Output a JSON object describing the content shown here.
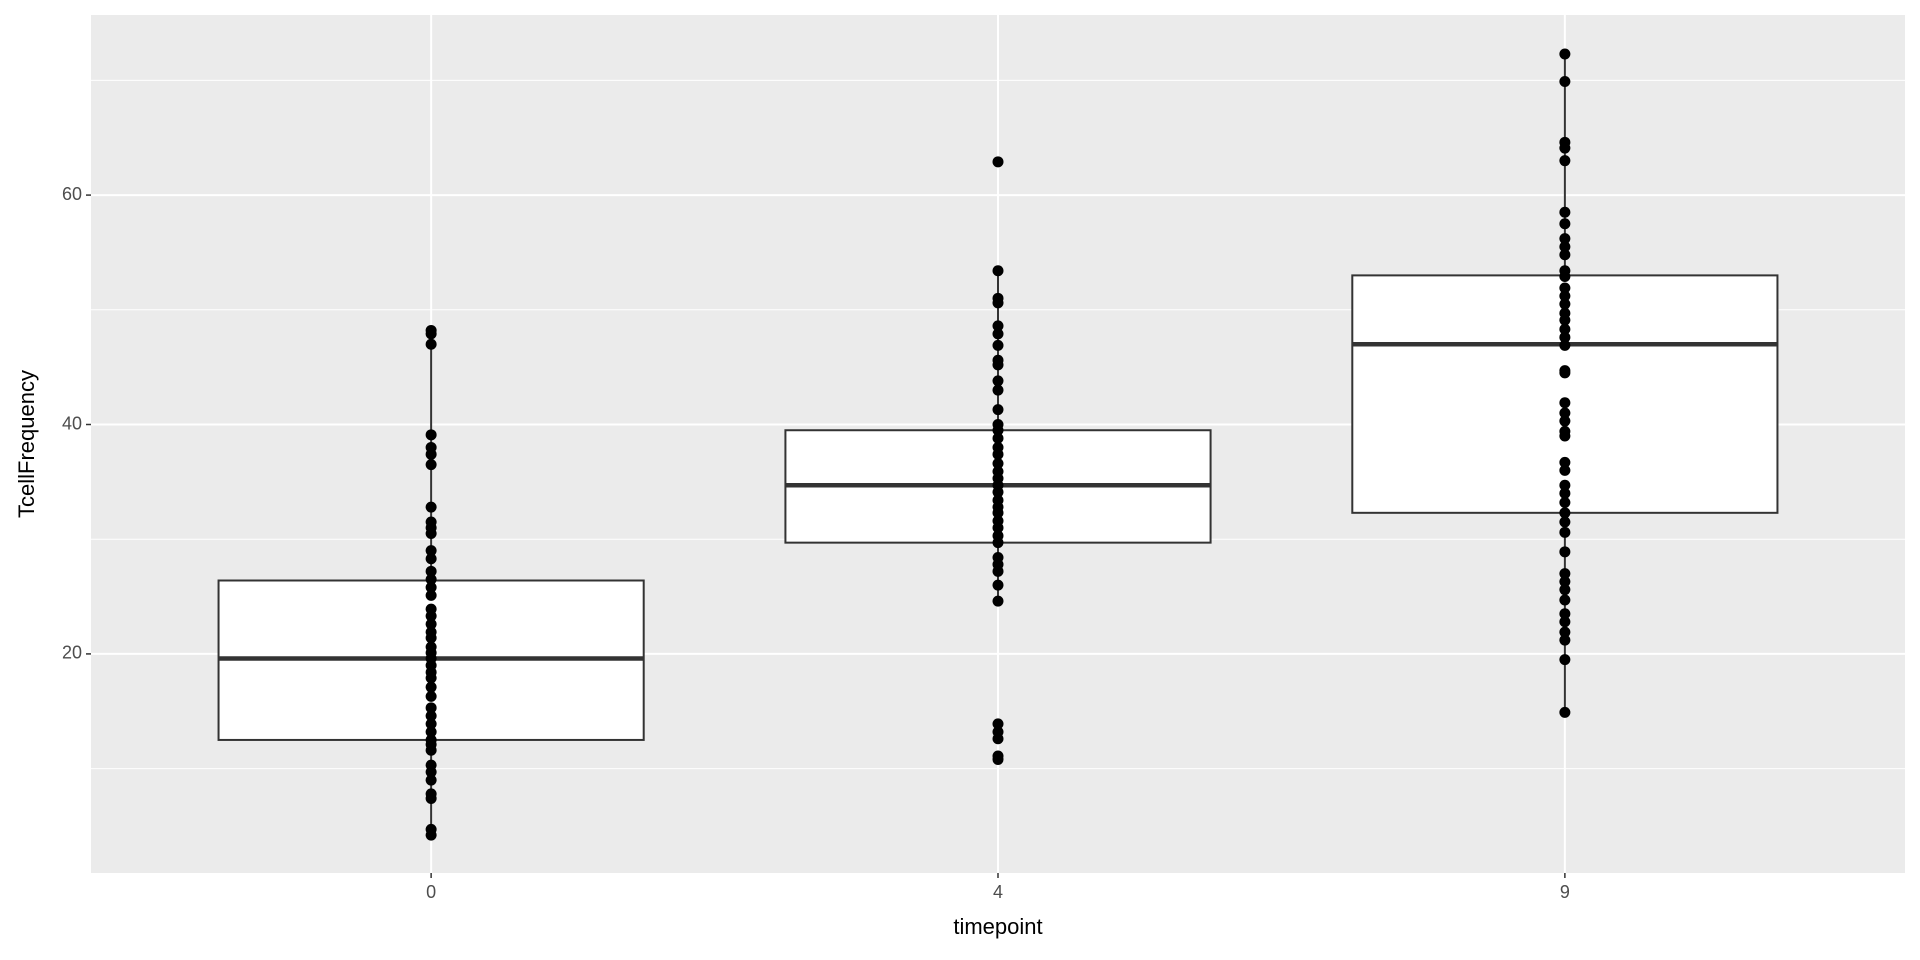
{
  "chart_data": {
    "type": "boxplot",
    "x_label": "timepoint",
    "y_label": "TcellFrequency",
    "categories": [
      "0",
      "4",
      "9"
    ],
    "ylim": [
      0.9,
      75.7
    ],
    "yticks": [
      20,
      40,
      60
    ],
    "y_minor_grid": [
      10,
      30,
      50,
      70
    ],
    "grid": true,
    "box_color": "#333333",
    "box_fill": "#ffffff",
    "point_color": "#000000",
    "boxes": [
      {
        "whisker_low": 4.2,
        "q1": 12.5,
        "median": 19.6,
        "q3": 26.4,
        "whisker_high": 47.0,
        "points": [
          48.2,
          47.9,
          47.0,
          39.1,
          38.0,
          37.4,
          36.5,
          32.8,
          31.5,
          31.0,
          30.5,
          29.0,
          28.3,
          27.2,
          26.5,
          25.8,
          25.1,
          23.9,
          23.3,
          22.6,
          21.9,
          21.4,
          20.6,
          20.1,
          19.6,
          19.0,
          18.4,
          17.9,
          17.1,
          16.3,
          15.3,
          14.6,
          13.9,
          13.2,
          12.5,
          12.1,
          11.6,
          10.3,
          9.7,
          9.0,
          7.8,
          7.4,
          4.7,
          4.2
        ]
      },
      {
        "whisker_low": 24.6,
        "q1": 29.7,
        "median": 34.7,
        "q3": 39.5,
        "whisker_high": 53.4,
        "points": [
          62.9,
          53.4,
          51.0,
          50.6,
          48.6,
          47.9,
          46.9,
          45.6,
          45.2,
          43.8,
          43.0,
          41.3,
          40.0,
          39.5,
          38.8,
          38.0,
          37.4,
          36.6,
          35.9,
          35.3,
          34.7,
          34.1,
          33.4,
          32.8,
          32.3,
          31.6,
          31.0,
          30.3,
          29.7,
          28.4,
          27.8,
          27.2,
          26.0,
          24.6,
          13.9,
          13.2,
          12.6,
          11.1,
          10.8
        ]
      },
      {
        "whisker_low": 14.9,
        "q1": 32.3,
        "median": 47.0,
        "q3": 53.0,
        "whisker_high": 72.3,
        "points": [
          72.3,
          69.9,
          64.6,
          64.1,
          63.0,
          58.5,
          57.5,
          56.2,
          55.5,
          54.8,
          53.4,
          52.9,
          51.9,
          51.2,
          50.5,
          49.7,
          49.1,
          48.3,
          47.6,
          46.9,
          44.7,
          44.5,
          41.9,
          41.0,
          40.3,
          39.4,
          39.0,
          36.7,
          36.0,
          34.7,
          34.0,
          33.2,
          32.3,
          31.5,
          30.6,
          28.9,
          27.0,
          26.3,
          25.6,
          24.7,
          23.5,
          22.8,
          21.9,
          21.2,
          19.5,
          14.9
        ]
      }
    ]
  }
}
